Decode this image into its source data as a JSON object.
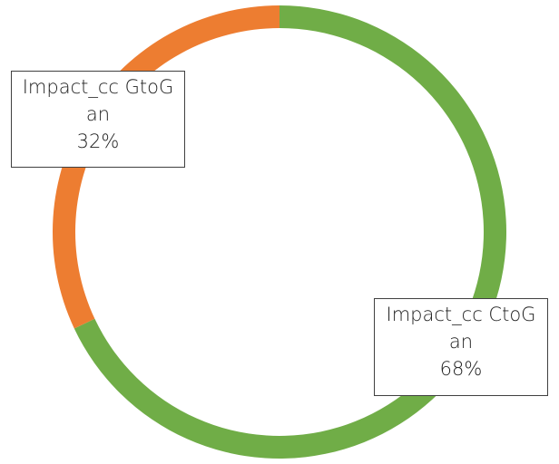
{
  "chart_data": {
    "type": "pie",
    "style": "donut",
    "title": "",
    "legend": "none",
    "slices": [
      {
        "label_line1": "Impact_cc CtoG",
        "label_line2": "an",
        "value": 68,
        "value_label": "68%",
        "color": "#70AD47"
      },
      {
        "label_line1": "Impact_cc GtoG",
        "label_line2": "an",
        "value": 32,
        "value_label": "32%",
        "color": "#ED7D31"
      }
    ]
  }
}
